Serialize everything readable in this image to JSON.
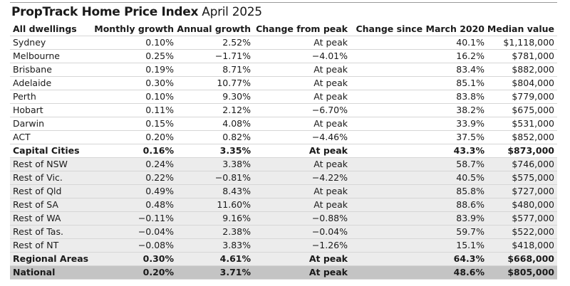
{
  "header": {
    "title": "PropTrack Home Price Index",
    "date": "April 2025"
  },
  "table": {
    "columns": [
      "All dwellings",
      "Monthly growth",
      "Annual growth",
      "Change from peak",
      "Change since March 2020",
      "Median value"
    ],
    "capital_cities": {
      "rows": [
        [
          "Sydney",
          "0.10%",
          "2.52%",
          "At peak",
          "40.1%",
          "$1,118,000"
        ],
        [
          "Melbourne",
          "0.25%",
          "−1.71%",
          "−4.01%",
          "16.2%",
          "$781,000"
        ],
        [
          "Brisbane",
          "0.19%",
          "8.71%",
          "At peak",
          "83.4%",
          "$882,000"
        ],
        [
          "Adelaide",
          "0.30%",
          "10.77%",
          "At peak",
          "85.1%",
          "$804,000"
        ],
        [
          "Perth",
          "0.10%",
          "9.30%",
          "At peak",
          "83.8%",
          "$779,000"
        ],
        [
          "Hobart",
          "0.11%",
          "2.12%",
          "−6.70%",
          "38.2%",
          "$675,000"
        ],
        [
          "Darwin",
          "0.15%",
          "4.08%",
          "At peak",
          "33.9%",
          "$531,000"
        ],
        [
          "ACT",
          "0.20%",
          "0.82%",
          "−4.46%",
          "37.5%",
          "$852,000"
        ]
      ],
      "total": [
        "Capital Cities",
        "0.16%",
        "3.35%",
        "At peak",
        "43.3%",
        "$873,000"
      ]
    },
    "regional_areas": {
      "rows": [
        [
          "Rest of NSW",
          "0.24%",
          "3.38%",
          "At peak",
          "58.7%",
          "$746,000"
        ],
        [
          "Rest of Vic.",
          "0.22%",
          "−0.81%",
          "−4.22%",
          "40.5%",
          "$575,000"
        ],
        [
          "Rest of Qld",
          "0.49%",
          "8.43%",
          "At peak",
          "85.8%",
          "$727,000"
        ],
        [
          "Rest of SA",
          "0.48%",
          "11.60%",
          "At peak",
          "88.6%",
          "$480,000"
        ],
        [
          "Rest of WA",
          "−0.11%",
          "9.16%",
          "−0.88%",
          "83.9%",
          "$577,000"
        ],
        [
          "Rest of Tas.",
          "−0.04%",
          "2.38%",
          "−0.04%",
          "59.7%",
          "$522,000"
        ],
        [
          "Rest of NT",
          "−0.08%",
          "3.83%",
          "−1.26%",
          "15.1%",
          "$418,000"
        ]
      ],
      "total": [
        "Regional Areas",
        "0.30%",
        "4.61%",
        "At peak",
        "64.3%",
        "$668,000"
      ]
    },
    "national": [
      "National",
      "0.20%",
      "3.71%",
      "At peak",
      "48.6%",
      "$805,000"
    ]
  }
}
